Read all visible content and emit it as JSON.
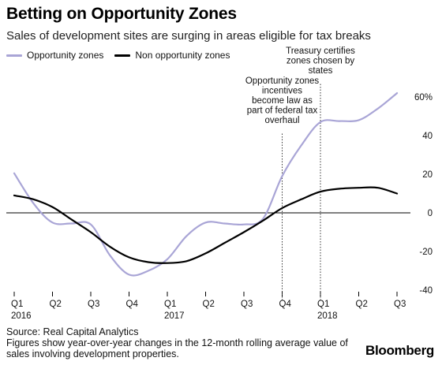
{
  "header": {
    "title": "Betting on Opportunity Zones",
    "subtitle": "Sales of development sites are surging in areas eligible for tax breaks"
  },
  "footer": {
    "source": "Source: Real Capital Analytics",
    "note_line1": "Figures show year-over-year changes in the 12-month rolling average value of",
    "note_line2": "sales involving development properties.",
    "brand": "Bloomberg"
  },
  "chart_data": {
    "type": "line",
    "title": "Betting on Opportunity Zones",
    "subtitle": "Sales of development sites are surging in areas eligible for tax breaks",
    "x_ticks": [
      {
        "q": "Q1",
        "year": "2016"
      },
      {
        "q": "Q2",
        "year": ""
      },
      {
        "q": "Q3",
        "year": ""
      },
      {
        "q": "Q4",
        "year": ""
      },
      {
        "q": "Q1",
        "year": "2017"
      },
      {
        "q": "Q2",
        "year": ""
      },
      {
        "q": "Q3",
        "year": ""
      },
      {
        "q": "Q4",
        "year": ""
      },
      {
        "q": "Q1",
        "year": "2018"
      },
      {
        "q": "Q2",
        "year": ""
      },
      {
        "q": "Q3",
        "year": ""
      }
    ],
    "y_ticks": [
      "60%",
      "40",
      "20",
      "0",
      "-20",
      "-40"
    ],
    "y_tick_values": [
      60,
      40,
      20,
      0,
      -20,
      -40
    ],
    "ylim": [
      -40,
      60
    ],
    "legend": "top-left",
    "series": [
      {
        "name": "Opportunity zones",
        "color": "#a9a5d6",
        "x": [
          0,
          0.5,
          1,
          1.5,
          2,
          2.5,
          3,
          3.5,
          4,
          4.5,
          5,
          5.5,
          6,
          6.5,
          7,
          7.5,
          8,
          8.5,
          9,
          9.5,
          10
        ],
        "values": [
          20.5,
          5,
          -5,
          -5.5,
          -6,
          -22,
          -32,
          -30,
          -24,
          -12,
          -5,
          -5.5,
          -6,
          -3,
          19,
          35,
          47,
          47.5,
          48,
          54,
          62
        ]
      },
      {
        "name": "Non opportunity zones",
        "color": "#000000",
        "x": [
          0,
          0.5,
          1,
          1.5,
          2,
          2.5,
          3,
          3.5,
          4,
          4.5,
          5,
          5.5,
          6,
          6.5,
          7,
          7.5,
          8,
          8.5,
          9,
          9.5,
          10
        ],
        "values": [
          9,
          7,
          3,
          -3.5,
          -10,
          -17.5,
          -23,
          -25.5,
          -26,
          -25,
          -21,
          -15.5,
          -10,
          -4,
          2.5,
          7,
          11,
          12.5,
          13,
          13,
          10
        ]
      }
    ],
    "annotations": [
      {
        "x": 7,
        "lines": [
          "Opportunity zones",
          "incentives",
          "become law as",
          "part of federal tax",
          "overhaul"
        ]
      },
      {
        "x": 8,
        "lines": [
          "Treasury certifies",
          "zones chosen by",
          "states"
        ]
      }
    ]
  }
}
